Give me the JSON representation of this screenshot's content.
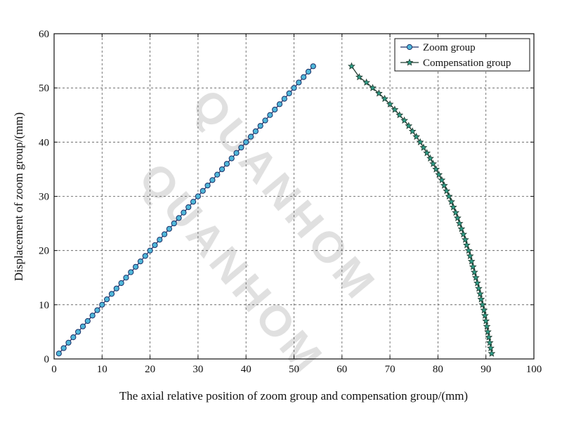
{
  "watermark": {
    "text": "QUANHOM"
  },
  "chart_data": {
    "type": "line",
    "title": "",
    "xlabel": "The axial relative position of zoom group and compensation group/(mm)",
    "ylabel": "Displacement of zoom group/(mm)",
    "xlim": [
      0,
      100
    ],
    "ylim": [
      0,
      60
    ],
    "x_ticks": [
      0,
      10,
      20,
      30,
      40,
      50,
      60,
      70,
      80,
      90,
      100
    ],
    "y_ticks": [
      0,
      10,
      20,
      30,
      40,
      50,
      60
    ],
    "grid": true,
    "legend_position": "top-right",
    "series": [
      {
        "name": "Zoom group",
        "marker": "circle",
        "color": "#4fb7d9",
        "line_color": "#1a2e66",
        "x": [
          1,
          2,
          3,
          4,
          5,
          6,
          7,
          8,
          9,
          10,
          11,
          12,
          13,
          14,
          15,
          16,
          17,
          18,
          19,
          20,
          21,
          22,
          23,
          24,
          25,
          26,
          27,
          28,
          29,
          30,
          31,
          32,
          33,
          34,
          35,
          36,
          37,
          38,
          39,
          40,
          41,
          42,
          43,
          44,
          45,
          46,
          47,
          48,
          49,
          50,
          51,
          52,
          53,
          54
        ],
        "y": [
          1,
          2,
          3,
          4,
          5,
          6,
          7,
          8,
          9,
          10,
          11,
          12,
          13,
          14,
          15,
          16,
          17,
          18,
          19,
          20,
          21,
          22,
          23,
          24,
          25,
          26,
          27,
          28,
          29,
          30,
          31,
          32,
          33,
          34,
          35,
          36,
          37,
          38,
          39,
          40,
          41,
          42,
          43,
          44,
          45,
          46,
          47,
          48,
          49,
          50,
          51,
          52,
          53,
          54
        ]
      },
      {
        "name": "Compensation group",
        "marker": "star",
        "color": "#2e9b86",
        "line_color": "#1f3a2e",
        "x": [
          91.2,
          91.0,
          90.8,
          90.6,
          90.4,
          90.2,
          90.0,
          89.8,
          89.6,
          89.3,
          89.0,
          88.8,
          88.5,
          88.2,
          87.9,
          87.6,
          87.3,
          87.0,
          86.7,
          86.4,
          86.0,
          85.7,
          85.3,
          84.9,
          84.5,
          84.1,
          83.7,
          83.2,
          82.8,
          82.3,
          81.8,
          81.3,
          80.8,
          80.2,
          79.6,
          79.0,
          78.4,
          77.7,
          77.0,
          76.3,
          75.5,
          74.7,
          73.9,
          73.0,
          72.0,
          71.0,
          70.0,
          68.9,
          67.7,
          66.4,
          65.1,
          63.6,
          62.0
        ],
        "y": [
          1,
          2,
          3,
          4,
          5,
          6,
          7,
          8,
          9,
          10,
          11,
          12,
          13,
          14,
          15,
          16,
          17,
          18,
          19,
          20,
          21,
          22,
          23,
          24,
          25,
          26,
          27,
          28,
          29,
          30,
          31,
          32,
          33,
          34,
          35,
          36,
          37,
          38,
          39,
          40,
          41,
          42,
          43,
          44,
          45,
          46,
          47,
          48,
          49,
          50,
          51,
          52,
          54
        ]
      }
    ]
  }
}
